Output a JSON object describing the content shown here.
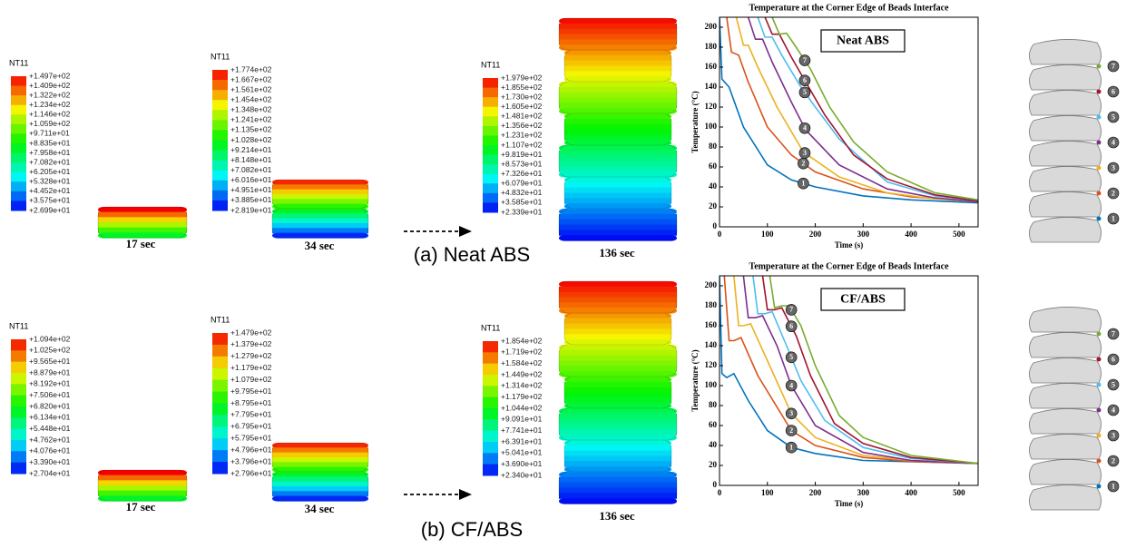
{
  "rows": [
    {
      "caption": "(a) Neat ABS",
      "snapshots": [
        {
          "legend_title": "NT11",
          "levels": [
            "+1.497e+02",
            "+1.409e+02",
            "+1.322e+02",
            "+1.234e+02",
            "+1.146e+02",
            "+1.059e+02",
            "+9.711e+01",
            "+8.835e+01",
            "+7.958e+01",
            "+7.082e+01",
            "+6.205e+01",
            "+5.328e+01",
            "+4.452e+01",
            "+3.575e+01",
            "+2.699e+01"
          ],
          "time": "17 sec"
        },
        {
          "legend_title": "NT11",
          "levels": [
            "+1.774e+02",
            "+1.667e+02",
            "+1.561e+02",
            "+1.454e+02",
            "+1.348e+02",
            "+1.241e+02",
            "+1.135e+02",
            "+1.028e+02",
            "+9.214e+01",
            "+8.148e+01",
            "+7.082e+01",
            "+6.016e+01",
            "+4.951e+01",
            "+3.885e+01",
            "+2.819e+01"
          ],
          "time": "34 sec"
        },
        {
          "legend_title": "NT11",
          "levels": [
            "+1.979e+02",
            "+1.855e+02",
            "+1.730e+02",
            "+1.605e+02",
            "+1.481e+02",
            "+1.356e+02",
            "+1.231e+02",
            "+1.107e+02",
            "+9.819e+01",
            "+8.573e+01",
            "+7.326e+01",
            "+6.079e+01",
            "+4.832e+01",
            "+3.585e+01",
            "+2.339e+01"
          ],
          "time": "136 sec"
        }
      ],
      "beads": [
        "7",
        "6",
        "5",
        "4",
        "3",
        "2",
        "1"
      ]
    },
    {
      "caption": "(b) CF/ABS",
      "snapshots": [
        {
          "legend_title": "NT11",
          "levels": [
            "+1.094e+02",
            "+1.025e+02",
            "+9.565e+01",
            "+8.879e+01",
            "+8.192e+01",
            "+7.506e+01",
            "+6.820e+01",
            "+6.134e+01",
            "+5.448e+01",
            "+4.762e+01",
            "+4.076e+01",
            "+3.390e+01",
            "+2.704e+01"
          ],
          "time": "17 sec"
        },
        {
          "legend_title": "NT11",
          "levels": [
            "+1.479e+02",
            "+1.379e+02",
            "+1.279e+02",
            "+1.179e+02",
            "+1.079e+02",
            "+9.795e+01",
            "+8.795e+01",
            "+7.795e+01",
            "+6.795e+01",
            "+5.795e+01",
            "+4.796e+01",
            "+3.796e+01",
            "+2.796e+01"
          ],
          "time": "34 sec"
        },
        {
          "legend_title": "NT11",
          "levels": [
            "+1.854e+02",
            "+1.719e+02",
            "+1.584e+02",
            "+1.449e+02",
            "+1.314e+02",
            "+1.179e+02",
            "+1.044e+02",
            "+9.091e+01",
            "+7.741e+01",
            "+6.391e+01",
            "+5.041e+01",
            "+3.690e+01",
            "+2.340e+01"
          ],
          "time": "136 sec"
        }
      ],
      "beads": [
        "7",
        "6",
        "5",
        "4",
        "3",
        "2",
        "1"
      ]
    }
  ],
  "chart_data": [
    {
      "type": "line",
      "title": "Temperature at the Corner Edge of Beads Interface",
      "inset": "Neat ABS",
      "xlabel": "Time (s)",
      "ylabel": "Temperature (°C)",
      "xlim": [
        0,
        540
      ],
      "ylim": [
        0,
        210
      ],
      "xticks": [
        0,
        100,
        200,
        300,
        400,
        500
      ],
      "yticks": [
        0,
        20,
        40,
        60,
        80,
        100,
        120,
        140,
        160,
        180,
        200
      ],
      "series": [
        {
          "label": "1",
          "label_x": 175,
          "color": "#0072bd",
          "x": [
            0,
            5,
            20,
            50,
            100,
            150,
            200,
            300,
            400,
            540
          ],
          "values": [
            210,
            148,
            140,
            100,
            62,
            47,
            40,
            31,
            27,
            24
          ]
        },
        {
          "label": "2",
          "label_x": 175,
          "color": "#d95319",
          "x": [
            15,
            25,
            40,
            60,
            100,
            150,
            200,
            300,
            400,
            540
          ],
          "values": [
            210,
            175,
            172,
            145,
            100,
            72,
            55,
            38,
            30,
            25
          ]
        },
        {
          "label": "3",
          "label_x": 178,
          "color": "#edb120",
          "x": [
            35,
            50,
            60,
            80,
            120,
            175,
            250,
            350,
            450,
            540
          ],
          "values": [
            210,
            182,
            182,
            160,
            120,
            75,
            50,
            34,
            28,
            25
          ]
        },
        {
          "label": "4",
          "label_x": 178,
          "color": "#7e2f8e",
          "x": [
            60,
            75,
            90,
            110,
            150,
            180,
            250,
            350,
            450,
            540
          ],
          "values": [
            210,
            188,
            188,
            165,
            125,
            97,
            62,
            38,
            29,
            25
          ]
        },
        {
          "label": "5",
          "label_x": 178,
          "color": "#4dbeee",
          "x": [
            80,
            95,
            110,
            130,
            170,
            200,
            250,
            350,
            450,
            540
          ],
          "values": [
            210,
            190,
            190,
            172,
            140,
            120,
            88,
            45,
            31,
            26
          ]
        },
        {
          "label": "6",
          "label_x": 178,
          "color": "#a2142f",
          "x": [
            95,
            110,
            125,
            150,
            180,
            220,
            280,
            350,
            450,
            540
          ],
          "values": [
            210,
            193,
            193,
            170,
            145,
            112,
            72,
            48,
            32,
            26
          ]
        },
        {
          "label": "7",
          "label_x": 178,
          "color": "#77ac30",
          "x": [
            110,
            125,
            140,
            160,
            190,
            230,
            280,
            350,
            450,
            540
          ],
          "values": [
            210,
            193,
            194,
            180,
            158,
            120,
            85,
            55,
            34,
            27
          ]
        }
      ]
    },
    {
      "type": "line",
      "title": "Temperature at the Corner Edge of Beads Interface",
      "inset": "CF/ABS",
      "xlabel": "Time (s)",
      "ylabel": "Temperature (°C)",
      "xlim": [
        0,
        540
      ],
      "ylim": [
        0,
        210
      ],
      "xticks": [
        0,
        100,
        200,
        300,
        400,
        500
      ],
      "yticks": [
        0,
        20,
        40,
        60,
        80,
        100,
        120,
        140,
        160,
        180,
        200
      ],
      "series": [
        {
          "label": "1",
          "label_x": 150,
          "color": "#0072bd",
          "x": [
            0,
            5,
            15,
            30,
            60,
            100,
            150,
            200,
            300,
            540
          ],
          "values": [
            210,
            112,
            108,
            112,
            85,
            55,
            38,
            32,
            25,
            22
          ]
        },
        {
          "label": "2",
          "label_x": 150,
          "color": "#d95319",
          "x": [
            10,
            20,
            30,
            45,
            80,
            150,
            200,
            300,
            400,
            540
          ],
          "values": [
            210,
            145,
            145,
            148,
            110,
            55,
            40,
            28,
            24,
            22
          ]
        },
        {
          "label": "3",
          "label_x": 150,
          "color": "#edb120",
          "x": [
            30,
            40,
            50,
            65,
            100,
            150,
            200,
            300,
            400,
            540
          ],
          "values": [
            210,
            160,
            160,
            162,
            125,
            72,
            48,
            30,
            25,
            22
          ]
        },
        {
          "label": "4",
          "label_x": 150,
          "color": "#7e2f8e",
          "x": [
            50,
            60,
            75,
            90,
            120,
            150,
            200,
            300,
            400,
            540
          ],
          "values": [
            210,
            168,
            168,
            170,
            140,
            100,
            60,
            33,
            25,
            22
          ]
        },
        {
          "label": "5",
          "label_x": 150,
          "color": "#4dbeee",
          "x": [
            70,
            80,
            95,
            110,
            140,
            170,
            220,
            300,
            400,
            540
          ],
          "values": [
            210,
            172,
            172,
            174,
            140,
            105,
            65,
            38,
            27,
            22
          ]
        },
        {
          "label": "6",
          "label_x": 150,
          "color": "#a2142f",
          "x": [
            90,
            100,
            115,
            130,
            160,
            190,
            240,
            300,
            400,
            540
          ],
          "values": [
            210,
            176,
            176,
            178,
            150,
            110,
            62,
            42,
            28,
            22
          ]
        },
        {
          "label": "7",
          "label_x": 150,
          "color": "#77ac30",
          "x": [
            105,
            115,
            130,
            145,
            170,
            200,
            250,
            300,
            400,
            540
          ],
          "values": [
            210,
            178,
            180,
            180,
            160,
            120,
            70,
            48,
            30,
            22
          ]
        }
      ]
    }
  ]
}
